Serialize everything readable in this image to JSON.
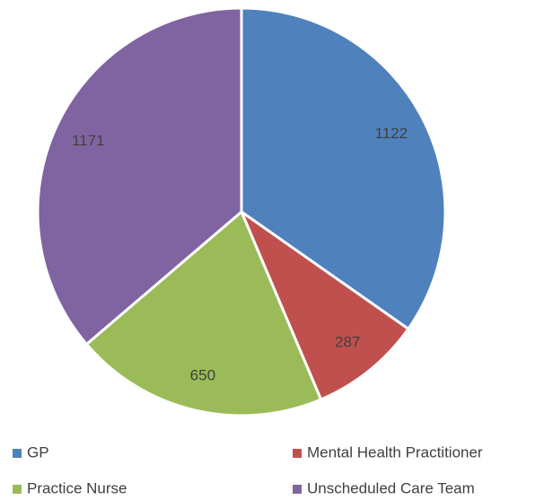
{
  "chart_data": {
    "type": "pie",
    "categories": [
      "GP",
      "Mental Health Practitioner",
      "Practice Nurse",
      "Unscheduled Care Team"
    ],
    "values": [
      1122,
      287,
      650,
      1171
    ],
    "colors": [
      "#4f81bd",
      "#c0504d",
      "#9bbb59",
      "#8064a2"
    ],
    "legend": "bottom"
  }
}
